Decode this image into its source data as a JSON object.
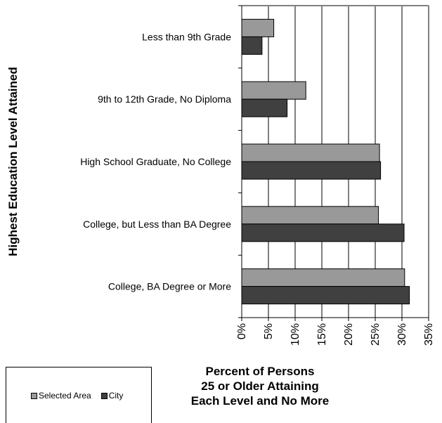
{
  "chart_data": {
    "type": "bar",
    "orientation": "horizontal",
    "categories": [
      "Less than 9th Grade",
      "9th to 12th Grade, No Diploma",
      "High School Graduate, No College",
      "College, but Less than BA Degree",
      "College, BA Degree or More"
    ],
    "series": [
      {
        "name": "Selected Area",
        "color": "#999999",
        "values": [
          6,
          12,
          25.8,
          25.6,
          30.5
        ]
      },
      {
        "name": "City",
        "color": "#404040",
        "values": [
          3.8,
          8.5,
          26,
          30.4,
          31.4
        ]
      }
    ],
    "xlim": [
      0,
      35
    ],
    "x_ticks": [
      "0%",
      "5%",
      "10%",
      "15%",
      "20%",
      "25%",
      "30%",
      "35%"
    ],
    "ylabel": "Highest Education Level Attained",
    "xlabel_lines": [
      "Percent of Persons",
      "25 or Older Attaining",
      "Each Level and No More"
    ],
    "grid": "vertical",
    "legend_position": "bottom-left"
  }
}
